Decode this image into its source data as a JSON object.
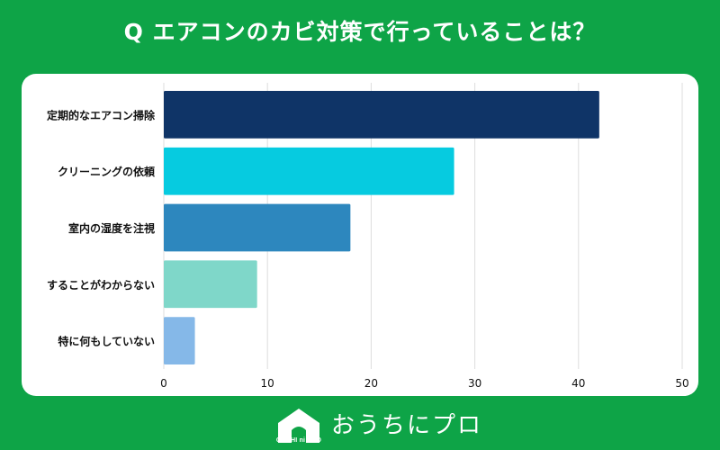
{
  "title": "Q エアコンのカビ対策で行っていることは？",
  "brand": {
    "name": "おうちにプロ",
    "sub": "OUCHI ni PRO"
  },
  "colors": {
    "background": "#0ea447",
    "card": "#ffffff",
    "grid": "#dddddd",
    "label": "#111111"
  },
  "icons": [
    "house-logo-icon"
  ],
  "chart_data": {
    "type": "bar",
    "orientation": "horizontal",
    "title": "Q エアコンのカビ対策で行っていることは？",
    "categories": [
      "定期的なエアコン掃除",
      "クリーニングの依頼",
      "室内の湿度を注視",
      "することがわからない",
      "特に何もしていない"
    ],
    "values": [
      42,
      28,
      18,
      9,
      3
    ],
    "colors": [
      "#0f3467",
      "#06cbe0",
      "#2d87be",
      "#7fd7c9",
      "#85b8e8"
    ],
    "xlim": [
      0,
      50
    ],
    "xticks": [
      0,
      10,
      20,
      30,
      40,
      50
    ],
    "grid": true,
    "xlabel": "",
    "ylabel": ""
  }
}
